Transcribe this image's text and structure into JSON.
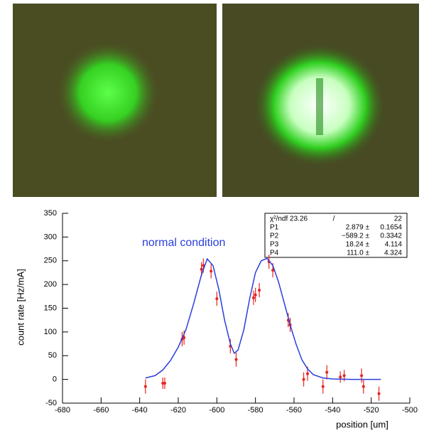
{
  "chart_data": {
    "type": "scatter",
    "xlabel": "position [um]",
    "ylabel": "count rate [Hz/mA]",
    "annotation": "normal condition",
    "xlim": [
      -680,
      -500
    ],
    "xticks": [
      -680,
      -660,
      -640,
      -620,
      -600,
      -580,
      -560,
      -540,
      -520,
      -500
    ],
    "ylim": [
      -50,
      350
    ],
    "yticks": [
      -50,
      0,
      50,
      100,
      150,
      200,
      250,
      300,
      350
    ],
    "series": [
      {
        "color": "#e8231c",
        "x": [
          -637,
          -628,
          -627,
          -618,
          -617,
          -608,
          -607,
          -603,
          -600,
          -593,
          -590,
          -581,
          -580,
          -578,
          -573,
          -571,
          -563,
          -562,
          -555,
          -553,
          -545,
          -543,
          -536,
          -534,
          -525,
          -524,
          -516
        ],
        "values": [
          -15,
          -8,
          -8,
          85,
          88,
          232,
          240,
          228,
          170,
          70,
          42,
          172,
          178,
          188,
          248,
          230,
          125,
          115,
          0,
          12,
          -15,
          15,
          5,
          8,
          8,
          -15,
          -30
        ],
        "errors": [
          15,
          12,
          12,
          15,
          15,
          15,
          15,
          15,
          15,
          15,
          15,
          15,
          15,
          15,
          15,
          15,
          15,
          15,
          15,
          15,
          15,
          15,
          12,
          12,
          15,
          15,
          15
        ]
      },
      {
        "type": "line",
        "color": "#2a3fdc",
        "x": [
          -637,
          -632,
          -628,
          -624,
          -620,
          -616,
          -612,
          -608,
          -605,
          -602,
          -599,
          -596,
          -593,
          -591,
          -589,
          -586,
          -583,
          -580,
          -577,
          -574,
          -571,
          -568,
          -565,
          -562,
          -559,
          -556,
          -553,
          -550,
          -545,
          -540,
          -530,
          -520,
          -515
        ],
        "values": [
          3,
          8,
          20,
          40,
          68,
          105,
          160,
          220,
          254,
          240,
          190,
          125,
          75,
          55,
          62,
          105,
          170,
          225,
          250,
          255,
          240,
          205,
          160,
          115,
          75,
          42,
          22,
          10,
          3,
          1,
          0,
          0,
          0
        ]
      }
    ],
    "stats_box": [
      [
        "χ²/ndf 23.26",
        "/",
        "22"
      ],
      [
        "P1",
        "2.879 ±",
        "0.1654"
      ],
      [
        "P2",
        "−589.2 ±",
        "0.3342"
      ],
      [
        "P3",
        "18.24 ±",
        "4.114"
      ],
      [
        "P4",
        "111.0 ±",
        "4.324"
      ]
    ]
  }
}
